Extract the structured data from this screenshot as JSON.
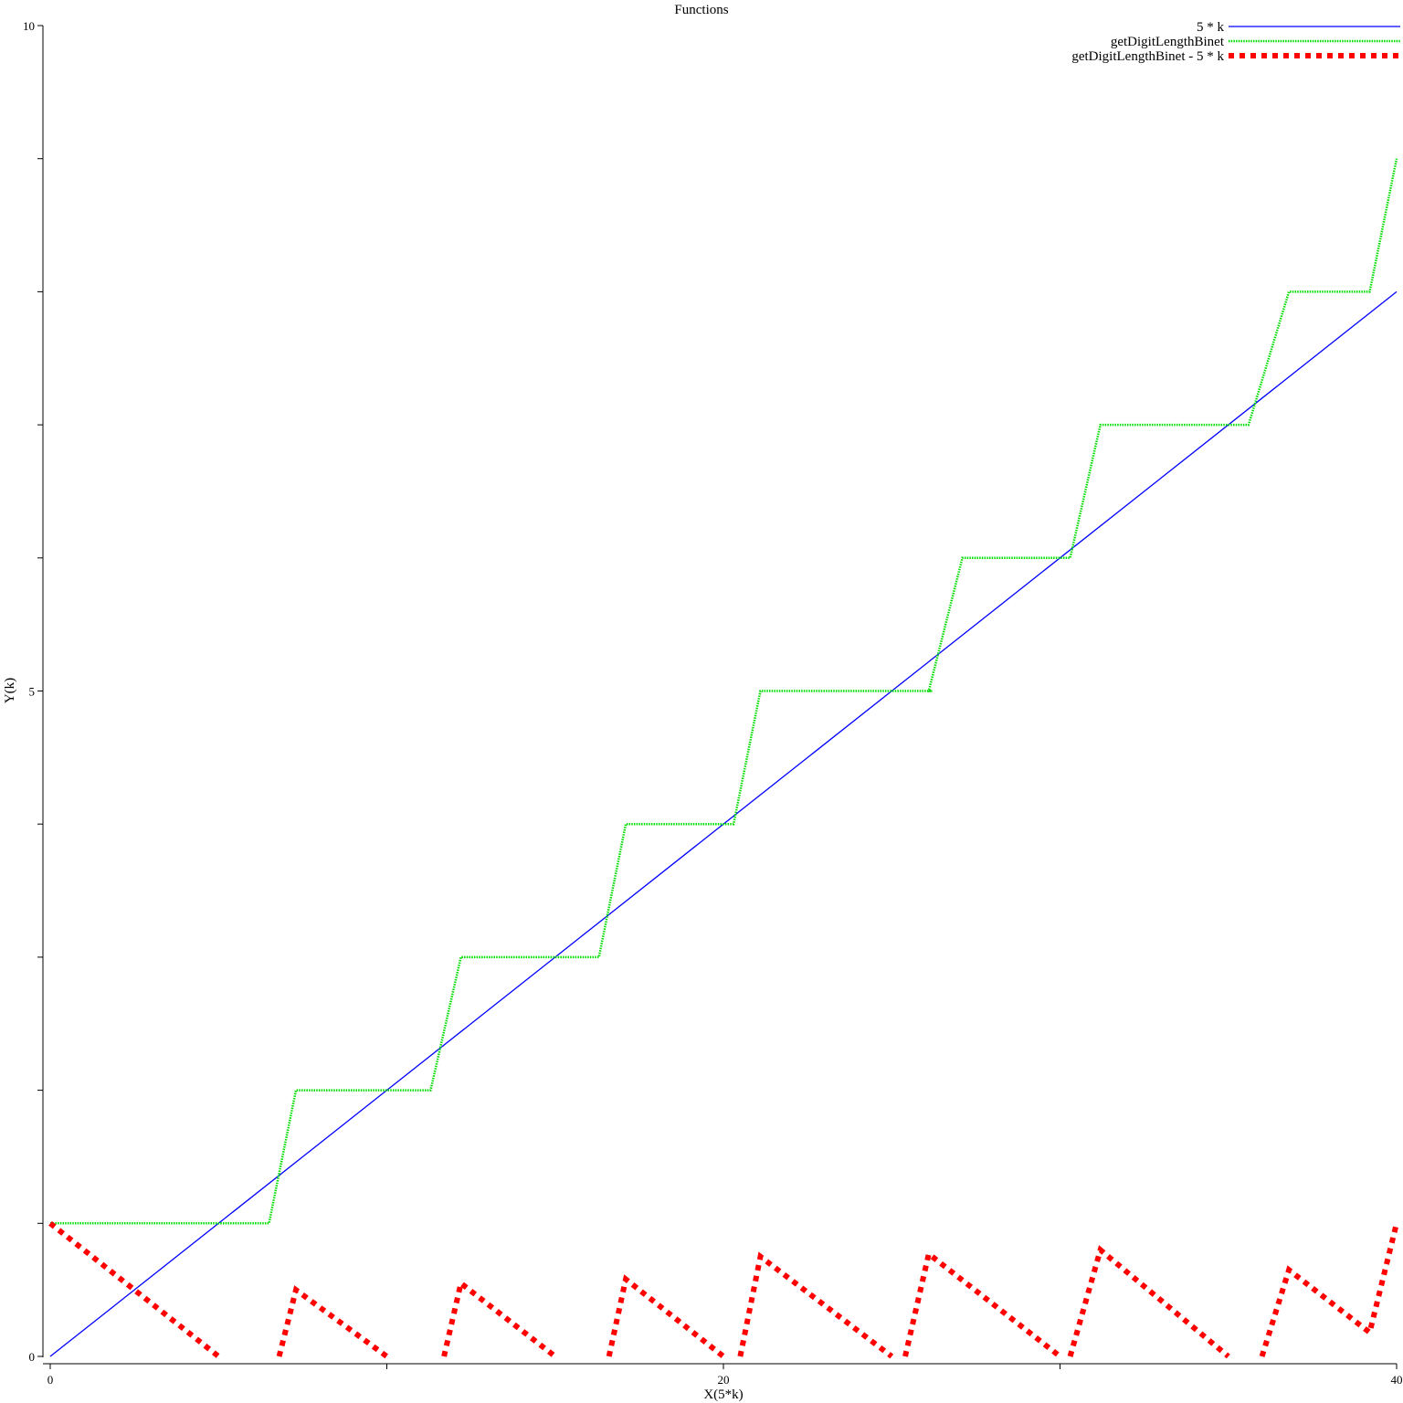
{
  "chart_data": {
    "type": "line",
    "title": "Functions",
    "xlabel": "X(5*k)",
    "ylabel": "Y(k)",
    "xlim": [
      0,
      40
    ],
    "ylim": [
      0,
      10
    ],
    "x_ticks": [
      0,
      10,
      20,
      30,
      40
    ],
    "x_tick_labels": [
      "0",
      "",
      "20",
      "",
      "40"
    ],
    "y_ticks": [
      0,
      1,
      2,
      3,
      4,
      5,
      6,
      7,
      8,
      9,
      10
    ],
    "y_tick_labels": [
      "0",
      "",
      "",
      "",
      "",
      "5",
      "",
      "",
      "",
      "",
      "10"
    ],
    "grid": false,
    "legend_position": "top-right",
    "series": [
      {
        "name": "5 * k",
        "color": "#0000ff",
        "style": "solid",
        "x": [
          0,
          40
        ],
        "y": [
          0,
          8
        ]
      },
      {
        "name": "getDigitLengthBinet",
        "color": "#00dd00",
        "style": "dotted",
        "x": [
          0,
          6.5,
          7.3,
          11.3,
          12.2,
          16.3,
          17.1,
          20.3,
          21.1,
          26.2,
          26.1,
          27.1,
          30.3,
          31.2,
          35.6,
          36.8,
          39.2,
          40
        ],
        "y": [
          1,
          1,
          2,
          2,
          3,
          3,
          4,
          4,
          5,
          5,
          5,
          6,
          6,
          7,
          7,
          8,
          8,
          9
        ]
      },
      {
        "name": "getDigitLengthBinet - 5 * k",
        "color": "#ff0000",
        "style": "thick-dashed",
        "segments": [
          {
            "x": [
              0,
              5
            ],
            "y": [
              1,
              0
            ]
          },
          {
            "x": [
              6.8,
              7.3,
              10.0
            ],
            "y": [
              0,
              0.5,
              0
            ]
          },
          {
            "x": [
              11.7,
              12.2,
              15.0
            ],
            "y": [
              0,
              0.55,
              0
            ]
          },
          {
            "x": [
              16.6,
              17.1,
              20.0
            ],
            "y": [
              0,
              0.58,
              0
            ]
          },
          {
            "x": [
              20.5,
              21.1,
              25.0
            ],
            "y": [
              0,
              0.75,
              0
            ]
          },
          {
            "x": [
              25.4,
              26.1,
              30.0
            ],
            "y": [
              0,
              0.77,
              0
            ]
          },
          {
            "x": [
              30.3,
              31.2,
              35.0
            ],
            "y": [
              0,
              0.8,
              0
            ]
          },
          {
            "x": [
              36.0,
              36.8,
              39.2,
              40.0
            ],
            "y": [
              0,
              0.65,
              0.18,
              1.0
            ]
          }
        ]
      }
    ]
  }
}
